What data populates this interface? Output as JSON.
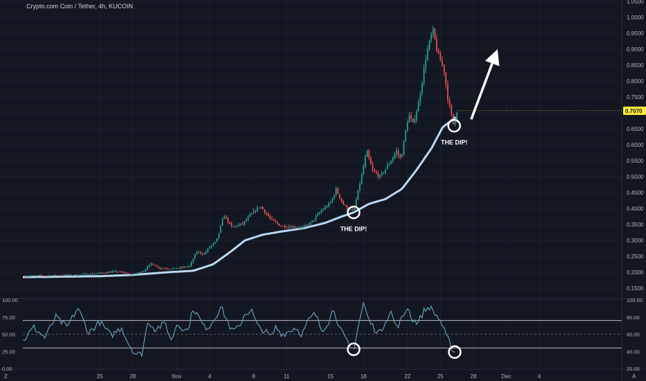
{
  "header": {
    "title": "Crypto.com Coin / Tether, 4h, KUCOIN"
  },
  "colors": {
    "background": "#131722",
    "up": "#26a69a",
    "down": "#ef5350",
    "ma": "#bcd9f2",
    "rsi_line": "#6ca7c2",
    "grid": "#1e2230",
    "text": "#b2b5be",
    "price_badge_bg": "#ffeb3b",
    "annotation": "#ffffff"
  },
  "footer": {
    "left_marker": "Z",
    "right_marker": "A"
  },
  "chart_data": [
    {
      "type": "candlestick",
      "title": "Crypto.com Coin / Tether, 4h, KUCOIN",
      "y_axis": {
        "range": [
          0.12,
          1.05
        ],
        "ticks": [
          "1.0500",
          "1.0000",
          "0.9500",
          "0.9000",
          "0.8500",
          "0.8000",
          "0.7500",
          "0.7000",
          "0.6500",
          "0.6000",
          "0.5500",
          "0.5000",
          "0.4500",
          "0.4000",
          "0.3500",
          "0.3000",
          "0.2500",
          "0.2000",
          "0.1500"
        ]
      },
      "x_axis": {
        "range_days": [
          -13.0,
          41.5
        ],
        "ticks": [
          {
            "label": "25",
            "day": -6
          },
          {
            "label": "28",
            "day": -3
          },
          {
            "label": "Nov",
            "day": 1
          },
          {
            "label": "4",
            "day": 4
          },
          {
            "label": "8",
            "day": 8
          },
          {
            "label": "11",
            "day": 11
          },
          {
            "label": "15",
            "day": 15
          },
          {
            "label": "18",
            "day": 18
          },
          {
            "label": "22",
            "day": 22
          },
          {
            "label": "25",
            "day": 25
          },
          {
            "label": "28",
            "day": 28
          },
          {
            "label": "Dec",
            "day": 31
          },
          {
            "label": "4",
            "day": 34
          }
        ]
      },
      "last_price": {
        "label": "0.7070",
        "value": 0.707
      },
      "price_anchors": [
        [
          -13,
          0.188
        ],
        [
          -8,
          0.192
        ],
        [
          -6,
          0.197
        ],
        [
          -4.5,
          0.203
        ],
        [
          -3,
          0.192
        ],
        [
          -2,
          0.205
        ],
        [
          -1.3,
          0.228
        ],
        [
          -0.5,
          0.213
        ],
        [
          1,
          0.212
        ],
        [
          2.2,
          0.22
        ],
        [
          2.8,
          0.265
        ],
        [
          3.5,
          0.258
        ],
        [
          4,
          0.28
        ],
        [
          4.6,
          0.296
        ],
        [
          5.3,
          0.38
        ],
        [
          6,
          0.342
        ],
        [
          7,
          0.352
        ],
        [
          8,
          0.39
        ],
        [
          8.6,
          0.408
        ],
        [
          9.6,
          0.365
        ],
        [
          10.5,
          0.345
        ],
        [
          11.5,
          0.343
        ],
        [
          12.5,
          0.34
        ],
        [
          13.2,
          0.355
        ],
        [
          14.2,
          0.395
        ],
        [
          15,
          0.418
        ],
        [
          15.5,
          0.46
        ],
        [
          16.2,
          0.41
        ],
        [
          17.1,
          0.39
        ],
        [
          17.8,
          0.5
        ],
        [
          18.3,
          0.58
        ],
        [
          18.8,
          0.52
        ],
        [
          19.5,
          0.5
        ],
        [
          20.3,
          0.54
        ],
        [
          21,
          0.58
        ],
        [
          21.4,
          0.555
        ],
        [
          22.1,
          0.695
        ],
        [
          22.5,
          0.665
        ],
        [
          23,
          0.73
        ],
        [
          23.7,
          0.88
        ],
        [
          24.3,
          0.96
        ],
        [
          24.8,
          0.88
        ],
        [
          25.3,
          0.84
        ],
        [
          25.7,
          0.74
        ],
        [
          26.2,
          0.66
        ],
        [
          26.5,
          0.707
        ]
      ],
      "ma_anchors": [
        [
          -13,
          0.185
        ],
        [
          -6,
          0.188
        ],
        [
          -3,
          0.192
        ],
        [
          0,
          0.2
        ],
        [
          2.5,
          0.205
        ],
        [
          4.3,
          0.225
        ],
        [
          5.8,
          0.262
        ],
        [
          7.2,
          0.3
        ],
        [
          8.8,
          0.318
        ],
        [
          10.5,
          0.328
        ],
        [
          12.5,
          0.338
        ],
        [
          14.5,
          0.355
        ],
        [
          16,
          0.375
        ],
        [
          17.1,
          0.388
        ],
        [
          18.5,
          0.415
        ],
        [
          20,
          0.43
        ],
        [
          21.5,
          0.462
        ],
        [
          22.8,
          0.52
        ],
        [
          24.2,
          0.59
        ],
        [
          25.2,
          0.655
        ],
        [
          26.5,
          0.69
        ]
      ],
      "annotations": [
        {
          "text": "THE DIP!",
          "day": 17.1,
          "value": 0.388,
          "type": "circle-label"
        },
        {
          "text": "THE DIP!",
          "day": 26.25,
          "value": 0.66,
          "type": "circle-label"
        }
      ],
      "arrow": {
        "from": {
          "day": 27.8,
          "value": 0.68
        },
        "to": {
          "day": 30.2,
          "value": 0.9
        }
      }
    },
    {
      "type": "line",
      "title": "",
      "y_axis": {
        "range": [
          0,
          100
        ],
        "left_ticks": [
          "100.00",
          "75.00",
          "50.00",
          "25.00",
          "0.00"
        ],
        "right_ticks": [
          "100.00",
          "80.00",
          "60.00",
          "40.00",
          "20.00"
        ]
      },
      "bands": {
        "upper": 70,
        "middle": 50,
        "lower": 30
      },
      "series_anchors": [
        [
          -13,
          40
        ],
        [
          -12,
          60
        ],
        [
          -11,
          45
        ],
        [
          -10,
          75
        ],
        [
          -9,
          60
        ],
        [
          -8,
          88
        ],
        [
          -7,
          52
        ],
        [
          -6,
          68
        ],
        [
          -5,
          48
        ],
        [
          -4,
          60
        ],
        [
          -3.5,
          40
        ],
        [
          -2.8,
          22
        ],
        [
          -2.2,
          20
        ],
        [
          -1.6,
          70
        ],
        [
          -1,
          58
        ],
        [
          0,
          65
        ],
        [
          0.5,
          40
        ],
        [
          1,
          65
        ],
        [
          2,
          55
        ],
        [
          2.5,
          88
        ],
        [
          3,
          75
        ],
        [
          3.5,
          60
        ],
        [
          4,
          62
        ],
        [
          4.5,
          75
        ],
        [
          5,
          90
        ],
        [
          5.6,
          70
        ],
        [
          6,
          55
        ],
        [
          6.6,
          58
        ],
        [
          7.2,
          80
        ],
        [
          7.8,
          85
        ],
        [
          8.4,
          60
        ],
        [
          9,
          55
        ],
        [
          9.6,
          45
        ],
        [
          10,
          60
        ],
        [
          10.6,
          50
        ],
        [
          11.2,
          54
        ],
        [
          11.8,
          60
        ],
        [
          12.4,
          50
        ],
        [
          13,
          70
        ],
        [
          13.6,
          80
        ],
        [
          14.2,
          56
        ],
        [
          14.8,
          68
        ],
        [
          15.3,
          88
        ],
        [
          15.8,
          60
        ],
        [
          16.3,
          44
        ],
        [
          16.8,
          30
        ],
        [
          17.1,
          28
        ],
        [
          17.5,
          60
        ],
        [
          18,
          95
        ],
        [
          18.5,
          70
        ],
        [
          19,
          58
        ],
        [
          19.5,
          52
        ],
        [
          20,
          70
        ],
        [
          20.5,
          82
        ],
        [
          21,
          60
        ],
        [
          21.5,
          72
        ],
        [
          22,
          90
        ],
        [
          22.5,
          70
        ],
        [
          23,
          68
        ],
        [
          23.5,
          84
        ],
        [
          24,
          90
        ],
        [
          24.5,
          80
        ],
        [
          25,
          70
        ],
        [
          25.5,
          48
        ],
        [
          26,
          32
        ],
        [
          26.3,
          22
        ],
        [
          26.5,
          35
        ]
      ],
      "annotations": [
        {
          "day": 17.1,
          "value": 28,
          "type": "circle"
        },
        {
          "day": 26.3,
          "value": 24,
          "type": "circle"
        }
      ]
    }
  ]
}
